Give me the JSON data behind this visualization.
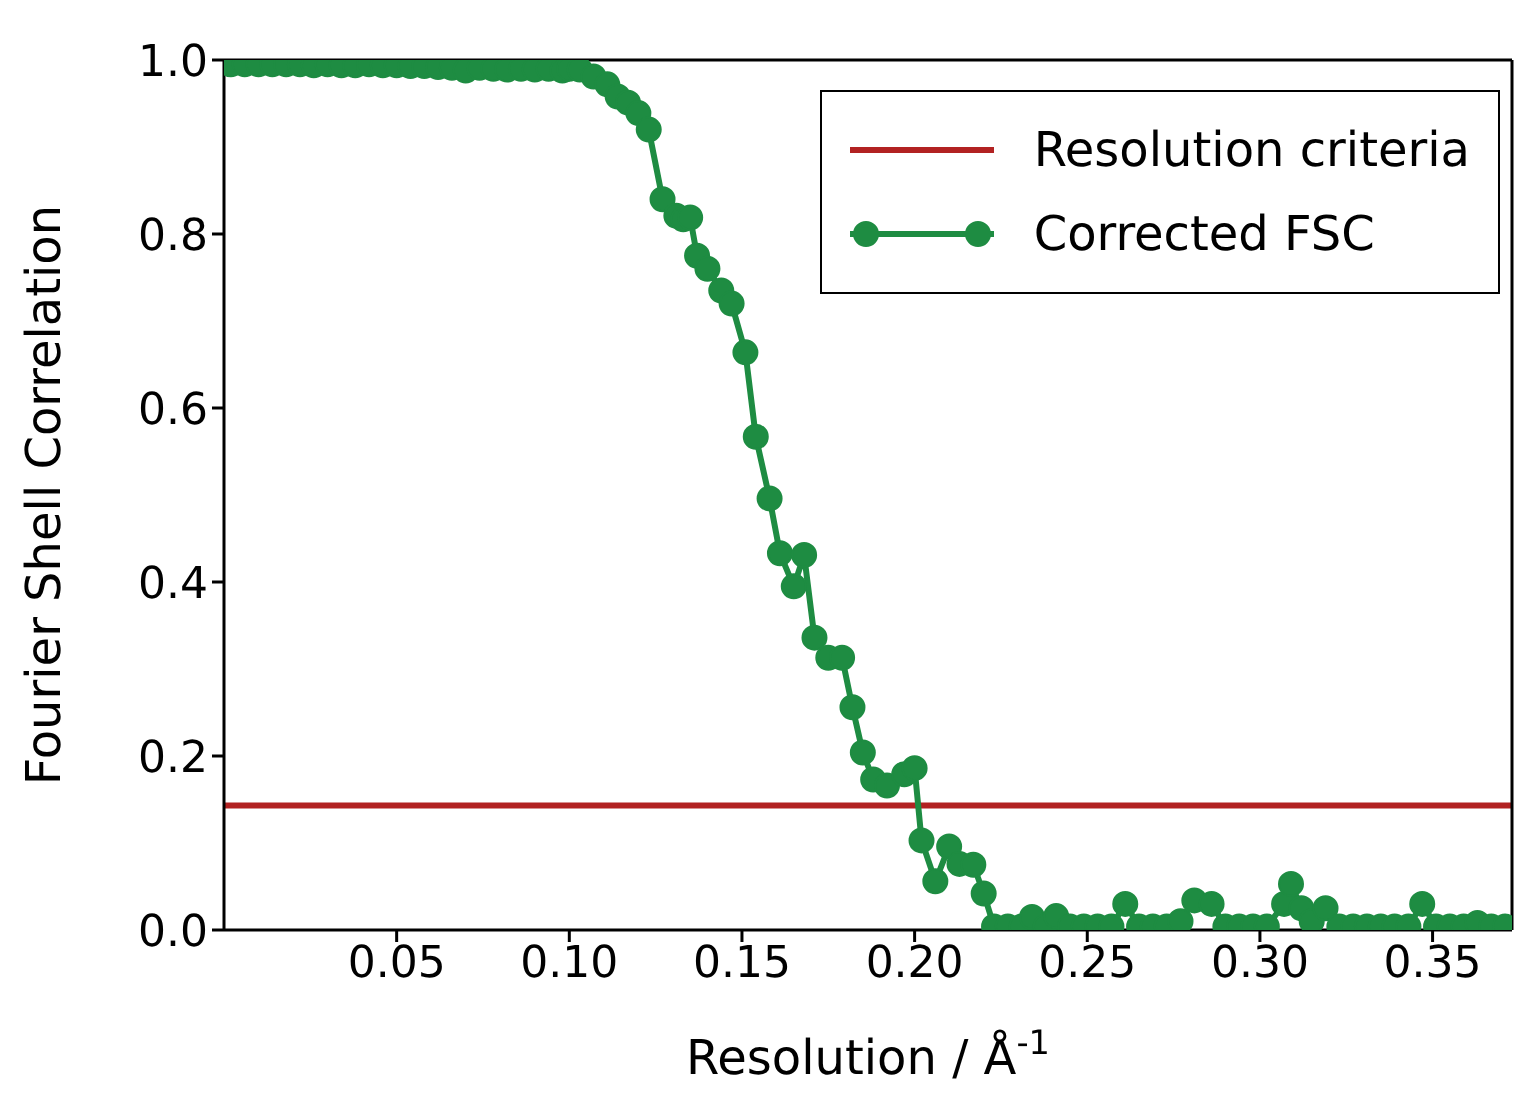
{
  "chart_data": {
    "type": "line",
    "xlabel": "Resolution / Å$^{-1}$",
    "ylabel": "Fourier Shell Correlation",
    "xlim": [
      0,
      0.373
    ],
    "ylim": [
      0,
      1
    ],
    "xticks": [
      {
        "value": 0.05,
        "label": "0.05"
      },
      {
        "value": 0.1,
        "label": "0.10"
      },
      {
        "value": 0.15,
        "label": "0.15"
      },
      {
        "value": 0.2,
        "label": "0.20"
      },
      {
        "value": 0.25,
        "label": "0.25"
      },
      {
        "value": 0.3,
        "label": "0.30"
      },
      {
        "value": 0.35,
        "label": "0.35"
      }
    ],
    "yticks": [
      {
        "value": 0,
        "label": "0.0"
      },
      {
        "value": 0.2,
        "label": "0.2"
      },
      {
        "value": 0.4,
        "label": "0.4"
      },
      {
        "value": 0.6,
        "label": "0.6"
      },
      {
        "value": 0.8,
        "label": "0.8"
      },
      {
        "value": 1,
        "label": "1.0"
      }
    ],
    "grid": false,
    "legend": "top right",
    "marker": "circle",
    "line_style": "solid",
    "ref_lines": [
      {
        "axis": "y",
        "value": 0.143,
        "label": "Resolution criteria",
        "color": "#b22222"
      }
    ],
    "series": [
      {
        "name": "Corrected FSC",
        "color": "#1e8c42",
        "x": [
          0.002,
          0.006,
          0.01,
          0.014,
          0.018,
          0.022,
          0.026,
          0.03,
          0.034,
          0.038,
          0.042,
          0.046,
          0.05,
          0.054,
          0.058,
          0.062,
          0.066,
          0.07,
          0.074,
          0.078,
          0.082,
          0.086,
          0.09,
          0.094,
          0.098,
          0.1,
          0.103,
          0.107,
          0.111,
          0.114,
          0.117,
          0.12,
          0.123,
          0.127,
          0.131,
          0.133,
          0.135,
          0.137,
          0.14,
          0.144,
          0.147,
          0.151,
          0.154,
          0.158,
          0.161,
          0.165,
          0.168,
          0.171,
          0.175,
          0.179,
          0.182,
          0.185,
          0.188,
          0.192,
          0.197,
          0.2,
          0.202,
          0.206,
          0.21,
          0.213,
          0.217,
          0.22,
          0.223,
          0.227,
          0.231,
          0.234,
          0.238,
          0.241,
          0.245,
          0.249,
          0.253,
          0.257,
          0.261,
          0.265,
          0.269,
          0.273,
          0.277,
          0.281,
          0.286,
          0.29,
          0.294,
          0.298,
          0.302,
          0.307,
          0.309,
          0.312,
          0.315,
          0.319,
          0.323,
          0.327,
          0.331,
          0.335,
          0.339,
          0.343,
          0.347,
          0.351,
          0.355,
          0.359,
          0.363,
          0.367,
          0.371
        ],
        "values": [
          0.995,
          0.995,
          0.995,
          0.995,
          0.995,
          0.995,
          0.994,
          0.995,
          0.994,
          0.994,
          0.995,
          0.994,
          0.994,
          0.993,
          0.993,
          0.992,
          0.991,
          0.988,
          0.991,
          0.99,
          0.989,
          0.99,
          0.989,
          0.99,
          0.988,
          0.99,
          0.989,
          0.981,
          0.972,
          0.958,
          0.951,
          0.939,
          0.92,
          0.84,
          0.821,
          0.817,
          0.819,
          0.775,
          0.76,
          0.735,
          0.72,
          0.664,
          0.567,
          0.496,
          0.433,
          0.395,
          0.431,
          0.336,
          0.313,
          0.313,
          0.256,
          0.204,
          0.173,
          0.166,
          0.179,
          0.186,
          0.103,
          0.056,
          0.096,
          0.076,
          0.075,
          0.042,
          0.004,
          0.004,
          0.004,
          0.015,
          0.004,
          0.016,
          0.004,
          0.004,
          0.004,
          0.004,
          0.03,
          0.004,
          0.004,
          0.004,
          0.01,
          0.034,
          0.03,
          0.004,
          0.004,
          0.004,
          0.004,
          0.03,
          0.053,
          0.025,
          0.01,
          0.025,
          0.004,
          0.004,
          0.004,
          0.004,
          0.004,
          0.004,
          0.03,
          0.004,
          0.004,
          0.004,
          0.008,
          0.004,
          0.004
        ]
      }
    ]
  }
}
